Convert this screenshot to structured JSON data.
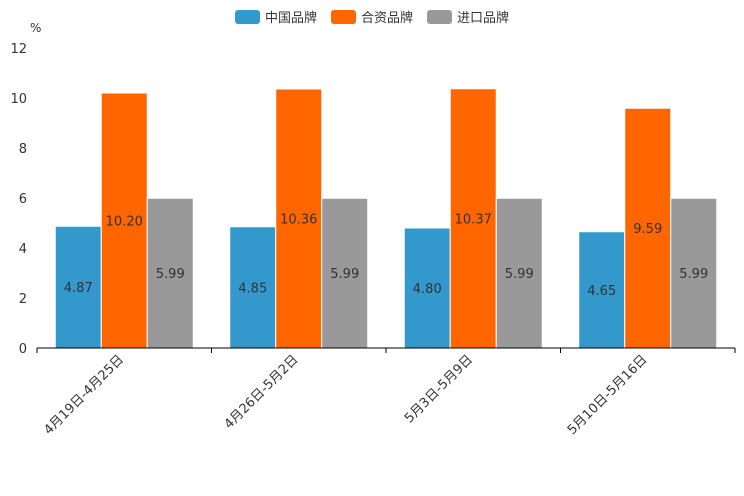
{
  "chart_data": {
    "type": "bar",
    "unit": "%",
    "categories": [
      "4月19日-4月25日",
      "4月26日-5月2日",
      "5月3日-5月9日",
      "5月10日-5月16日"
    ],
    "series": [
      {
        "name": "中国品牌",
        "color": "#3399CC",
        "values": [
          4.87,
          4.85,
          4.8,
          4.65
        ],
        "labels": [
          "4.87",
          "4.85",
          "4.80",
          "4.65"
        ]
      },
      {
        "name": "合资品牌",
        "color": "#FF6600",
        "values": [
          10.2,
          10.36,
          10.37,
          9.59
        ],
        "labels": [
          "10.20",
          "10.36",
          "10.37",
          "9.59"
        ]
      },
      {
        "name": "进口品牌",
        "color": "#999999",
        "values": [
          5.99,
          5.99,
          5.99,
          5.99
        ],
        "labels": [
          "5.99",
          "5.99",
          "5.99",
          "5.99"
        ]
      }
    ],
    "yticks": [
      "0",
      "2",
      "4",
      "6",
      "8",
      "10",
      "12"
    ],
    "ylim": [
      0,
      12
    ],
    "legend_position": "top-center"
  }
}
